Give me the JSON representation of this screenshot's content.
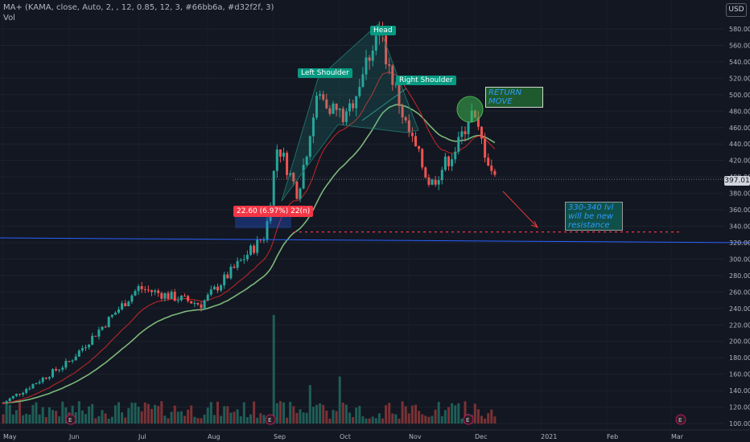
{
  "legend": {
    "indicator": "MA+ (KAMA, close, Auto, 2, , 12, 0.85, 12, 3, #66bb6a, #d32f2f, 3)",
    "volume": "Vol"
  },
  "currency_label": "USD",
  "last_price_label": "397.01",
  "annotations": {
    "head": "Head",
    "left_shoulder": "Left Shoulder",
    "right_shoulder": "Right Shoulder",
    "measure": "22.60 (6.97%) 22(n)",
    "return_move_line1": "RETURN",
    "return_move_line2": "MOVE",
    "resistance_line1": "330-340 lvl",
    "resistance_line2": "will be new",
    "resistance_line3": "resistance"
  },
  "colors": {
    "background": "#131722",
    "up": "#26a69a",
    "down": "#ef5350",
    "kama_up": "#66bb6a",
    "kama_down": "#d32f2f",
    "trendline": "#2962ff",
    "support": "#f23645"
  },
  "chart_data": {
    "type": "candlestick",
    "symbol_scale": "price",
    "ylim": [
      100,
      600
    ],
    "y_ticks": [
      100,
      120,
      140,
      160,
      180,
      200,
      220,
      240,
      260,
      280,
      300,
      320,
      340,
      360,
      380,
      400,
      420,
      440,
      460,
      480,
      500,
      520,
      540,
      560,
      580
    ],
    "x_ticks": [
      "May",
      "Jun",
      "Jul",
      "Aug",
      "Sep",
      "Oct",
      "Nov",
      "Dec",
      "2021",
      "Feb",
      "Mar"
    ],
    "last_price": 397.01,
    "earnings_markers": [
      "May",
      "Sep",
      "Dec",
      "Mar"
    ],
    "price_path": [
      [
        "May",
        125
      ],
      [
        "Jun",
        175
      ],
      [
        "Jul",
        265
      ],
      [
        "Aug",
        245
      ],
      [
        "Aug late",
        330
      ],
      [
        "Sep",
        440
      ],
      [
        "Sep mid",
        380
      ],
      [
        "Oct",
        500
      ],
      [
        "Oct mid",
        470
      ],
      [
        "Oct late",
        580
      ],
      [
        "Nov",
        460
      ],
      [
        "Nov mid",
        390
      ],
      [
        "Nov late",
        440
      ],
      [
        "Dec",
        480
      ],
      [
        "Dec mid",
        397
      ]
    ],
    "support_level": 333,
    "resistance_zone": [
      330,
      340
    ]
  }
}
